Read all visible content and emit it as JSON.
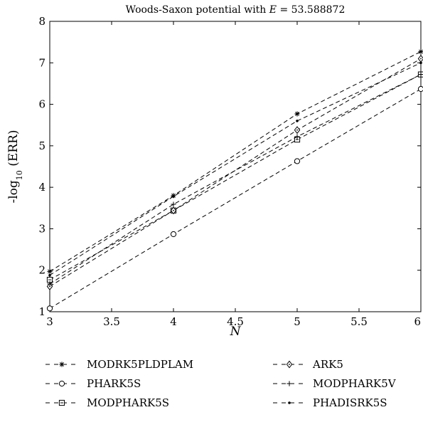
{
  "chart_data": {
    "type": "line",
    "title": "Woods-Saxon potential with E = 53.588872",
    "title_parts": {
      "prefix": "Woods-Saxon potential with ",
      "variable": "E",
      "suffix": " = 53.588872"
    },
    "xlabel": "N",
    "ylabel": "-log10 (ERR)",
    "ylabel_parts": {
      "prefix": "-log",
      "sub": "10",
      "suffix": " (ERR)"
    },
    "x": [
      3,
      4,
      5,
      6
    ],
    "xlim": [
      3,
      6
    ],
    "ylim": [
      1,
      8
    ],
    "xticks": [
      "3",
      "3.5",
      "4",
      "4.5",
      "5",
      "5.5",
      "6"
    ],
    "yticks": [
      "1",
      "2",
      "3",
      "4",
      "5",
      "6",
      "7",
      "8"
    ],
    "grid": false,
    "legend_position": "below",
    "series": [
      {
        "name": "MODRK5PLDPLAM",
        "marker": "asterisk",
        "values": [
          1.97,
          3.8,
          5.77,
          7.27
        ]
      },
      {
        "name": "PHARK5S",
        "marker": "circle",
        "values": [
          1.08,
          2.87,
          4.63,
          6.37
        ]
      },
      {
        "name": "MODPHARK5S",
        "marker": "square",
        "values": [
          1.77,
          3.44,
          5.15,
          6.72
        ]
      },
      {
        "name": "ARK5",
        "marker": "diamond",
        "values": [
          1.61,
          3.44,
          5.38,
          7.1
        ]
      },
      {
        "name": "MODPHARK5V",
        "marker": "plus",
        "values": [
          1.67,
          3.59,
          5.22,
          6.72
        ]
      },
      {
        "name": "PHADISRK5S",
        "marker": "dot",
        "values": [
          1.88,
          3.78,
          5.6,
          7.0
        ]
      }
    ]
  }
}
